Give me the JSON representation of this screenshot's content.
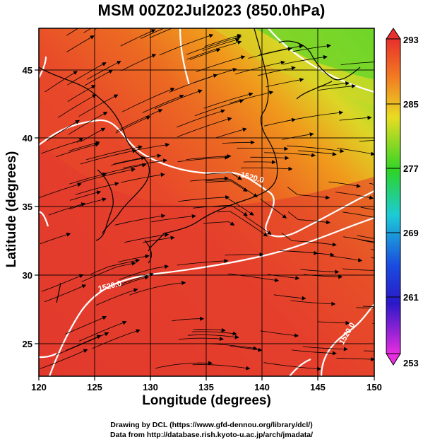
{
  "title": "MSM 00Z02Jul2023 (850.0hPa)",
  "xlabel": "Longitude (degrees)",
  "ylabel": "Latitude  (degrees)",
  "x_ticks": [
    120,
    125,
    130,
    135,
    140,
    145,
    150
  ],
  "y_ticks": [
    25,
    30,
    35,
    40,
    45
  ],
  "colorbar_ticks": [
    293,
    285,
    277,
    269,
    261,
    253
  ],
  "contour_labels": [
    "1520.0",
    "1520.0",
    "1520.0"
  ],
  "credit_line1": "Drawing by DCL (https://www.gfd-dennou.org/library/dcl/)",
  "credit_line2": "Data from http://database.rish.kyoto-u.ac.jp/arch/jmadata/",
  "colors": {
    "warm": "#e8422c",
    "orange": "#f08a1e",
    "yellow": "#e6dc28",
    "green": "#5ad428",
    "contour": "#ffffff",
    "coast": "#000000"
  }
}
